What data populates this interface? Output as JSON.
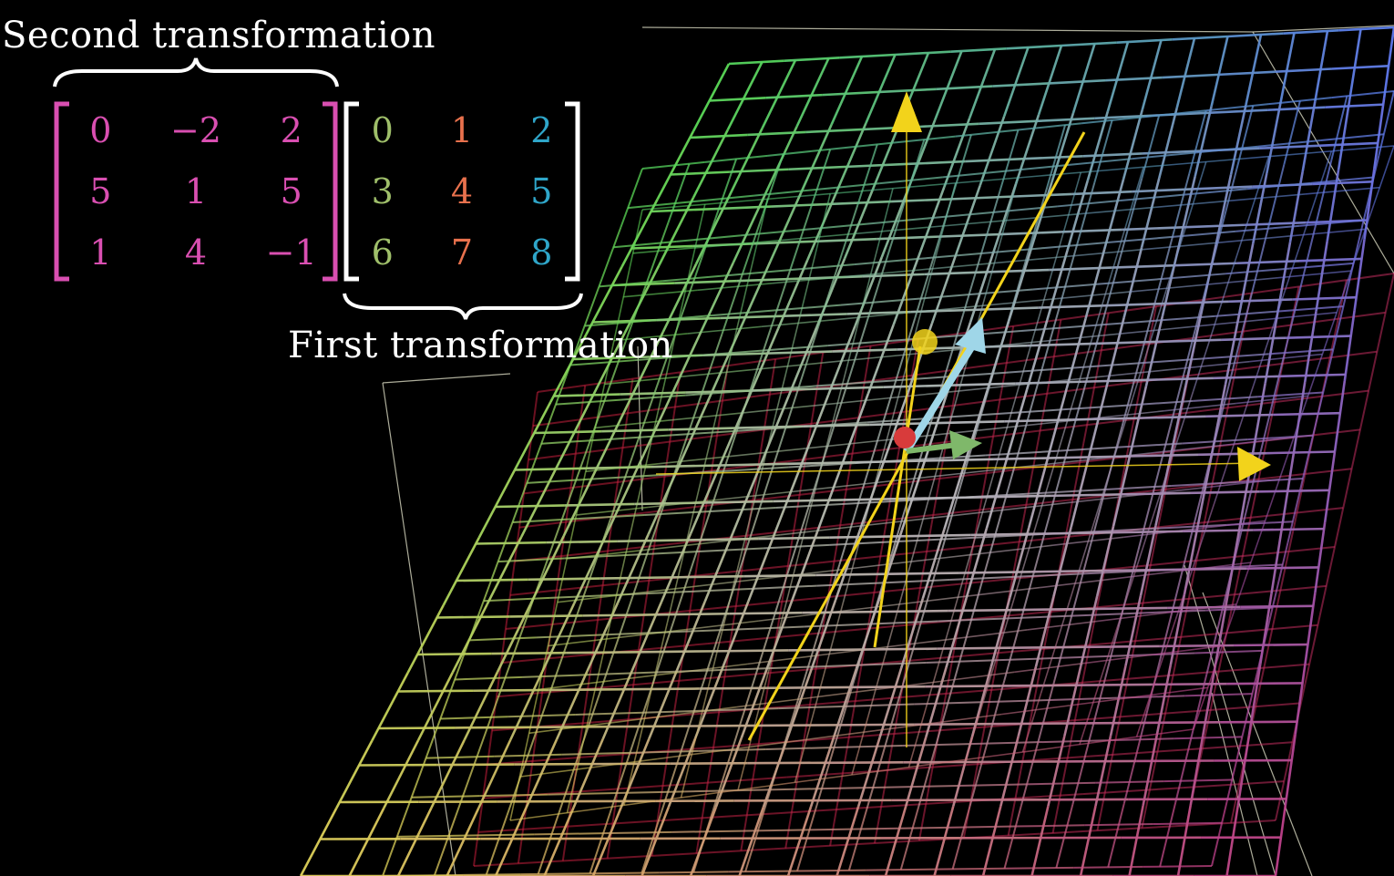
{
  "labels": {
    "second": "Second transformation",
    "first": "First transformation"
  },
  "matrices": {
    "second": {
      "color": "#d94fb1",
      "rows": [
        [
          "0",
          "−2",
          "2"
        ],
        [
          "5",
          "1",
          "5"
        ],
        [
          "1",
          "4",
          "−1"
        ]
      ]
    },
    "first": {
      "column_colors": [
        "#9fbf6a",
        "#e8714d",
        "#2fa6c9"
      ],
      "bracket_color": "#ffffff",
      "rows": [
        [
          "0",
          "1",
          "2"
        ],
        [
          "3",
          "4",
          "5"
        ],
        [
          "6",
          "7",
          "8"
        ]
      ]
    }
  },
  "scene": {
    "grid_colors": {
      "top_left": "#55d957",
      "top_right": "#5c7cf2",
      "center": "#c8c8d2",
      "bottom_left": "#e3d15a",
      "bottom_right": "#c23e86",
      "lower_plane": "#c21e3a"
    },
    "axis_color": "#f2d31b",
    "vector_colors": {
      "i_hat": "#d83b3b",
      "j_hat": "#7fb86a",
      "k_hat": "#9fd6e8"
    }
  }
}
